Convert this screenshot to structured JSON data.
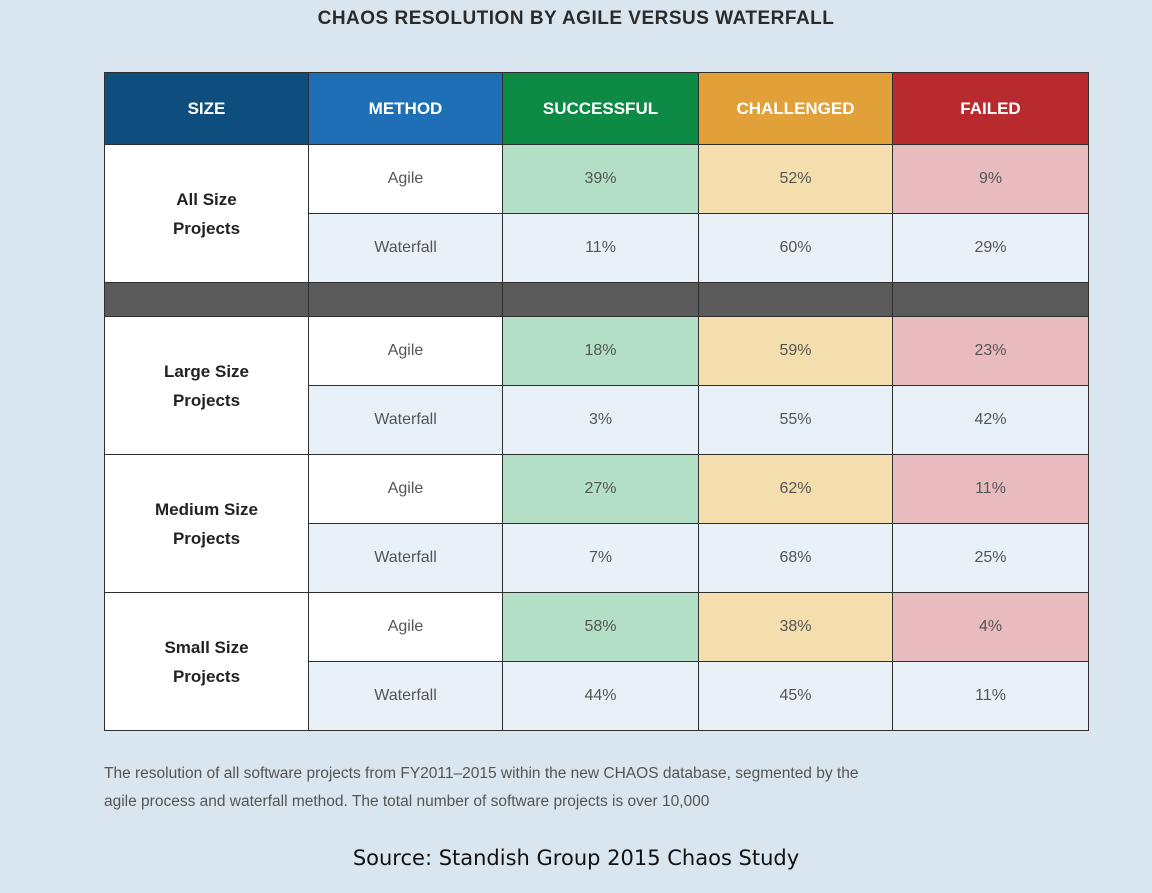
{
  "title": "CHAOS RESOLUTION BY AGILE VERSUS WATERFALL",
  "headers": {
    "size": "SIZE",
    "method": "METHOD",
    "successful": "SUCCESSFUL",
    "challenged": "CHALLENGED",
    "failed": "FAILED"
  },
  "colors": {
    "size_header": "#0e4e7e",
    "method_header": "#1e6fb5",
    "successful_header": "#0d8a43",
    "challenged_header": "#e1a038",
    "failed_header": "#b82a2e",
    "page_background": "#d9e6ef"
  },
  "groups": [
    {
      "size_line1": "All Size",
      "size_line2": "Projects",
      "rows": [
        {
          "method": "Agile",
          "successful": "39%",
          "challenged": "52%",
          "failed": "9%"
        },
        {
          "method": "Waterfall",
          "successful": "11%",
          "challenged": "60%",
          "failed": "29%"
        }
      ]
    },
    {
      "size_line1": "Large Size",
      "size_line2": "Projects",
      "rows": [
        {
          "method": "Agile",
          "successful": "18%",
          "challenged": "59%",
          "failed": "23%"
        },
        {
          "method": "Waterfall",
          "successful": "3%",
          "challenged": "55%",
          "failed": "42%"
        }
      ]
    },
    {
      "size_line1": "Medium Size",
      "size_line2": "Projects",
      "rows": [
        {
          "method": "Agile",
          "successful": "27%",
          "challenged": "62%",
          "failed": "11%"
        },
        {
          "method": "Waterfall",
          "successful": "7%",
          "challenged": "68%",
          "failed": "25%"
        }
      ]
    },
    {
      "size_line1": "Small Size",
      "size_line2": "Projects",
      "rows": [
        {
          "method": "Agile",
          "successful": "58%",
          "challenged": "38%",
          "failed": "4%"
        },
        {
          "method": "Waterfall",
          "successful": "44%",
          "challenged": "45%",
          "failed": "11%"
        }
      ]
    }
  ],
  "caption_line1": "The resolution of all software projects from FY2011–2015 within the new CHAOS database, segmented by the",
  "caption_line2": "agile process and waterfall method. The total number of software projects is over 10,000",
  "source": "Source: Standish Group 2015 Chaos Study"
}
